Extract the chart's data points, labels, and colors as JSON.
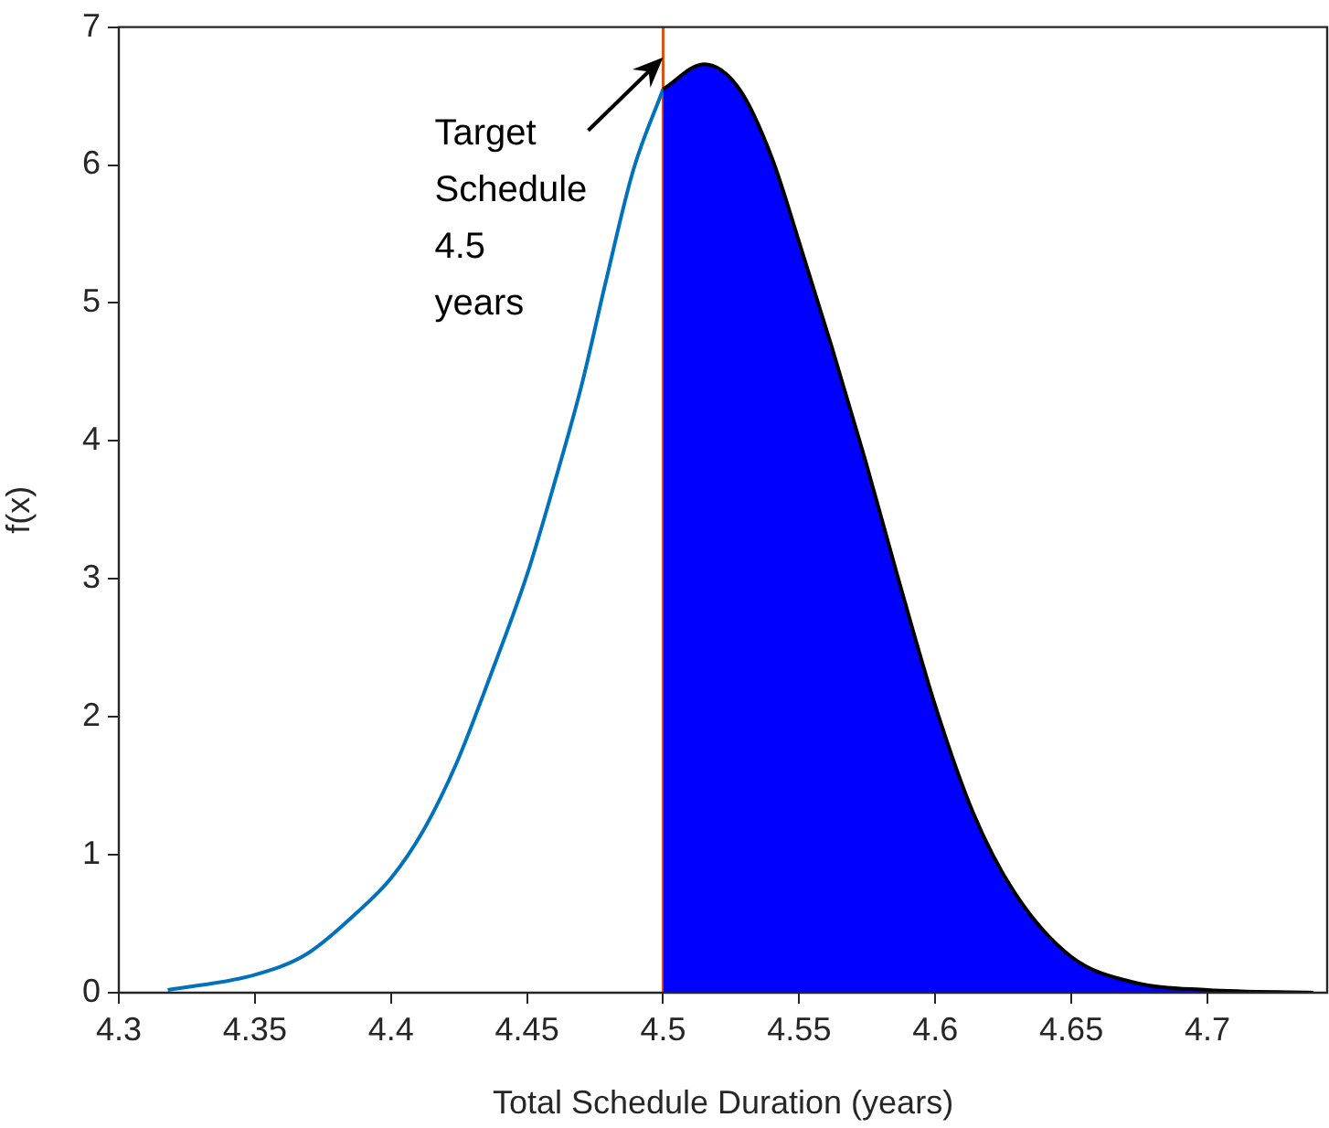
{
  "chart_data": {
    "type": "line",
    "xlabel": "Total Schedule Duration (years)",
    "ylabel": "f(x)",
    "xlim": [
      4.3,
      4.744
    ],
    "xticks": [
      4.3,
      4.35,
      4.4,
      4.45,
      4.5,
      4.55,
      4.6,
      4.65,
      4.7
    ],
    "ylim": [
      0,
      7
    ],
    "yticks": [
      0,
      1,
      2,
      3,
      4,
      5,
      6,
      7
    ],
    "x": [
      4.318,
      4.35,
      4.369,
      4.388,
      4.4,
      4.412,
      4.424,
      4.436,
      4.45,
      4.46,
      4.47,
      4.479,
      4.489,
      4.5
    ],
    "series": [
      {
        "color": "#0072bd",
        "values": [
          0.02,
          0.13,
          0.28,
          0.59,
          0.83,
          1.18,
          1.66,
          2.27,
          3.03,
          3.69,
          4.4,
          5.16,
          5.96,
          6.55
        ]
      },
      {
        "type": "area",
        "color": "#0000ff",
        "x": [
          4.5,
          4.515,
          4.528,
          4.54,
          4.55,
          4.562,
          4.574,
          4.586,
          4.6,
          4.614,
          4.629,
          4.65,
          4.674,
          4.7,
          4.739
        ],
        "values": [
          6.55,
          6.73,
          6.55,
          6.05,
          5.44,
          4.68,
          3.88,
          3.03,
          2.08,
          1.3,
          0.73,
          0.26,
          0.07,
          0.02,
          0
        ]
      }
    ],
    "ref_lines": [
      {
        "axis": "x",
        "value": 4.5,
        "color": "#d95319"
      }
    ],
    "annotations": [
      {
        "text": "Target Schedule 4.5 years",
        "x": 4.5,
        "y": 6.78
      }
    ],
    "grid": false,
    "legend": false,
    "marker": "none",
    "line_style": "solid"
  }
}
